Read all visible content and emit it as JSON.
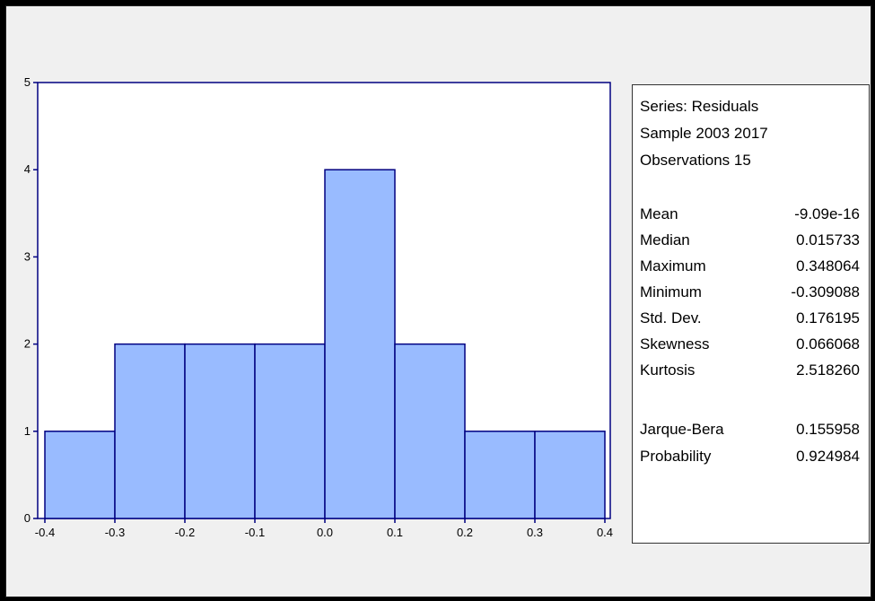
{
  "colors": {
    "bar_fill": "#99bbff",
    "bar_stroke": "#000080",
    "axis": "#000080",
    "plot_bg": "#ffffff",
    "window_bg": "#f0f0f0"
  },
  "chart_data": {
    "type": "bar",
    "title": "",
    "xlabel": "",
    "ylabel": "",
    "bin_edges": [
      -0.4,
      -0.3,
      -0.2,
      -0.1,
      0.0,
      0.1,
      0.2,
      0.3,
      0.4
    ],
    "values": [
      1,
      2,
      2,
      2,
      4,
      2,
      1,
      1
    ],
    "xlim": [
      -0.4,
      0.4
    ],
    "ylim": [
      0,
      5
    ],
    "x_ticks": [
      "-0.4",
      "-0.3",
      "-0.2",
      "-0.1",
      "0.0",
      "0.1",
      "0.2",
      "0.3",
      "0.4"
    ],
    "y_ticks": [
      "0",
      "1",
      "2",
      "3",
      "4",
      "5"
    ],
    "grid": false,
    "legend": "none"
  },
  "stats": {
    "series": "Series: Residuals",
    "sample": "Sample 2003 2017",
    "observations": "Observations 15",
    "rows": [
      {
        "label": "Mean",
        "value": "-9.09e-16"
      },
      {
        "label": "Median",
        "value": "0.015733"
      },
      {
        "label": "Maximum",
        "value": "0.348064"
      },
      {
        "label": "Minimum",
        "value": "-0.309088"
      },
      {
        "label": "Std. Dev.",
        "value": "0.176195"
      },
      {
        "label": "Skewness",
        "value": "0.066068"
      },
      {
        "label": "Kurtosis",
        "value": "2.518260"
      }
    ],
    "tests": [
      {
        "label": "Jarque-Bera",
        "value": "0.155958"
      },
      {
        "label": "Probability",
        "value": "0.924984"
      }
    ]
  }
}
